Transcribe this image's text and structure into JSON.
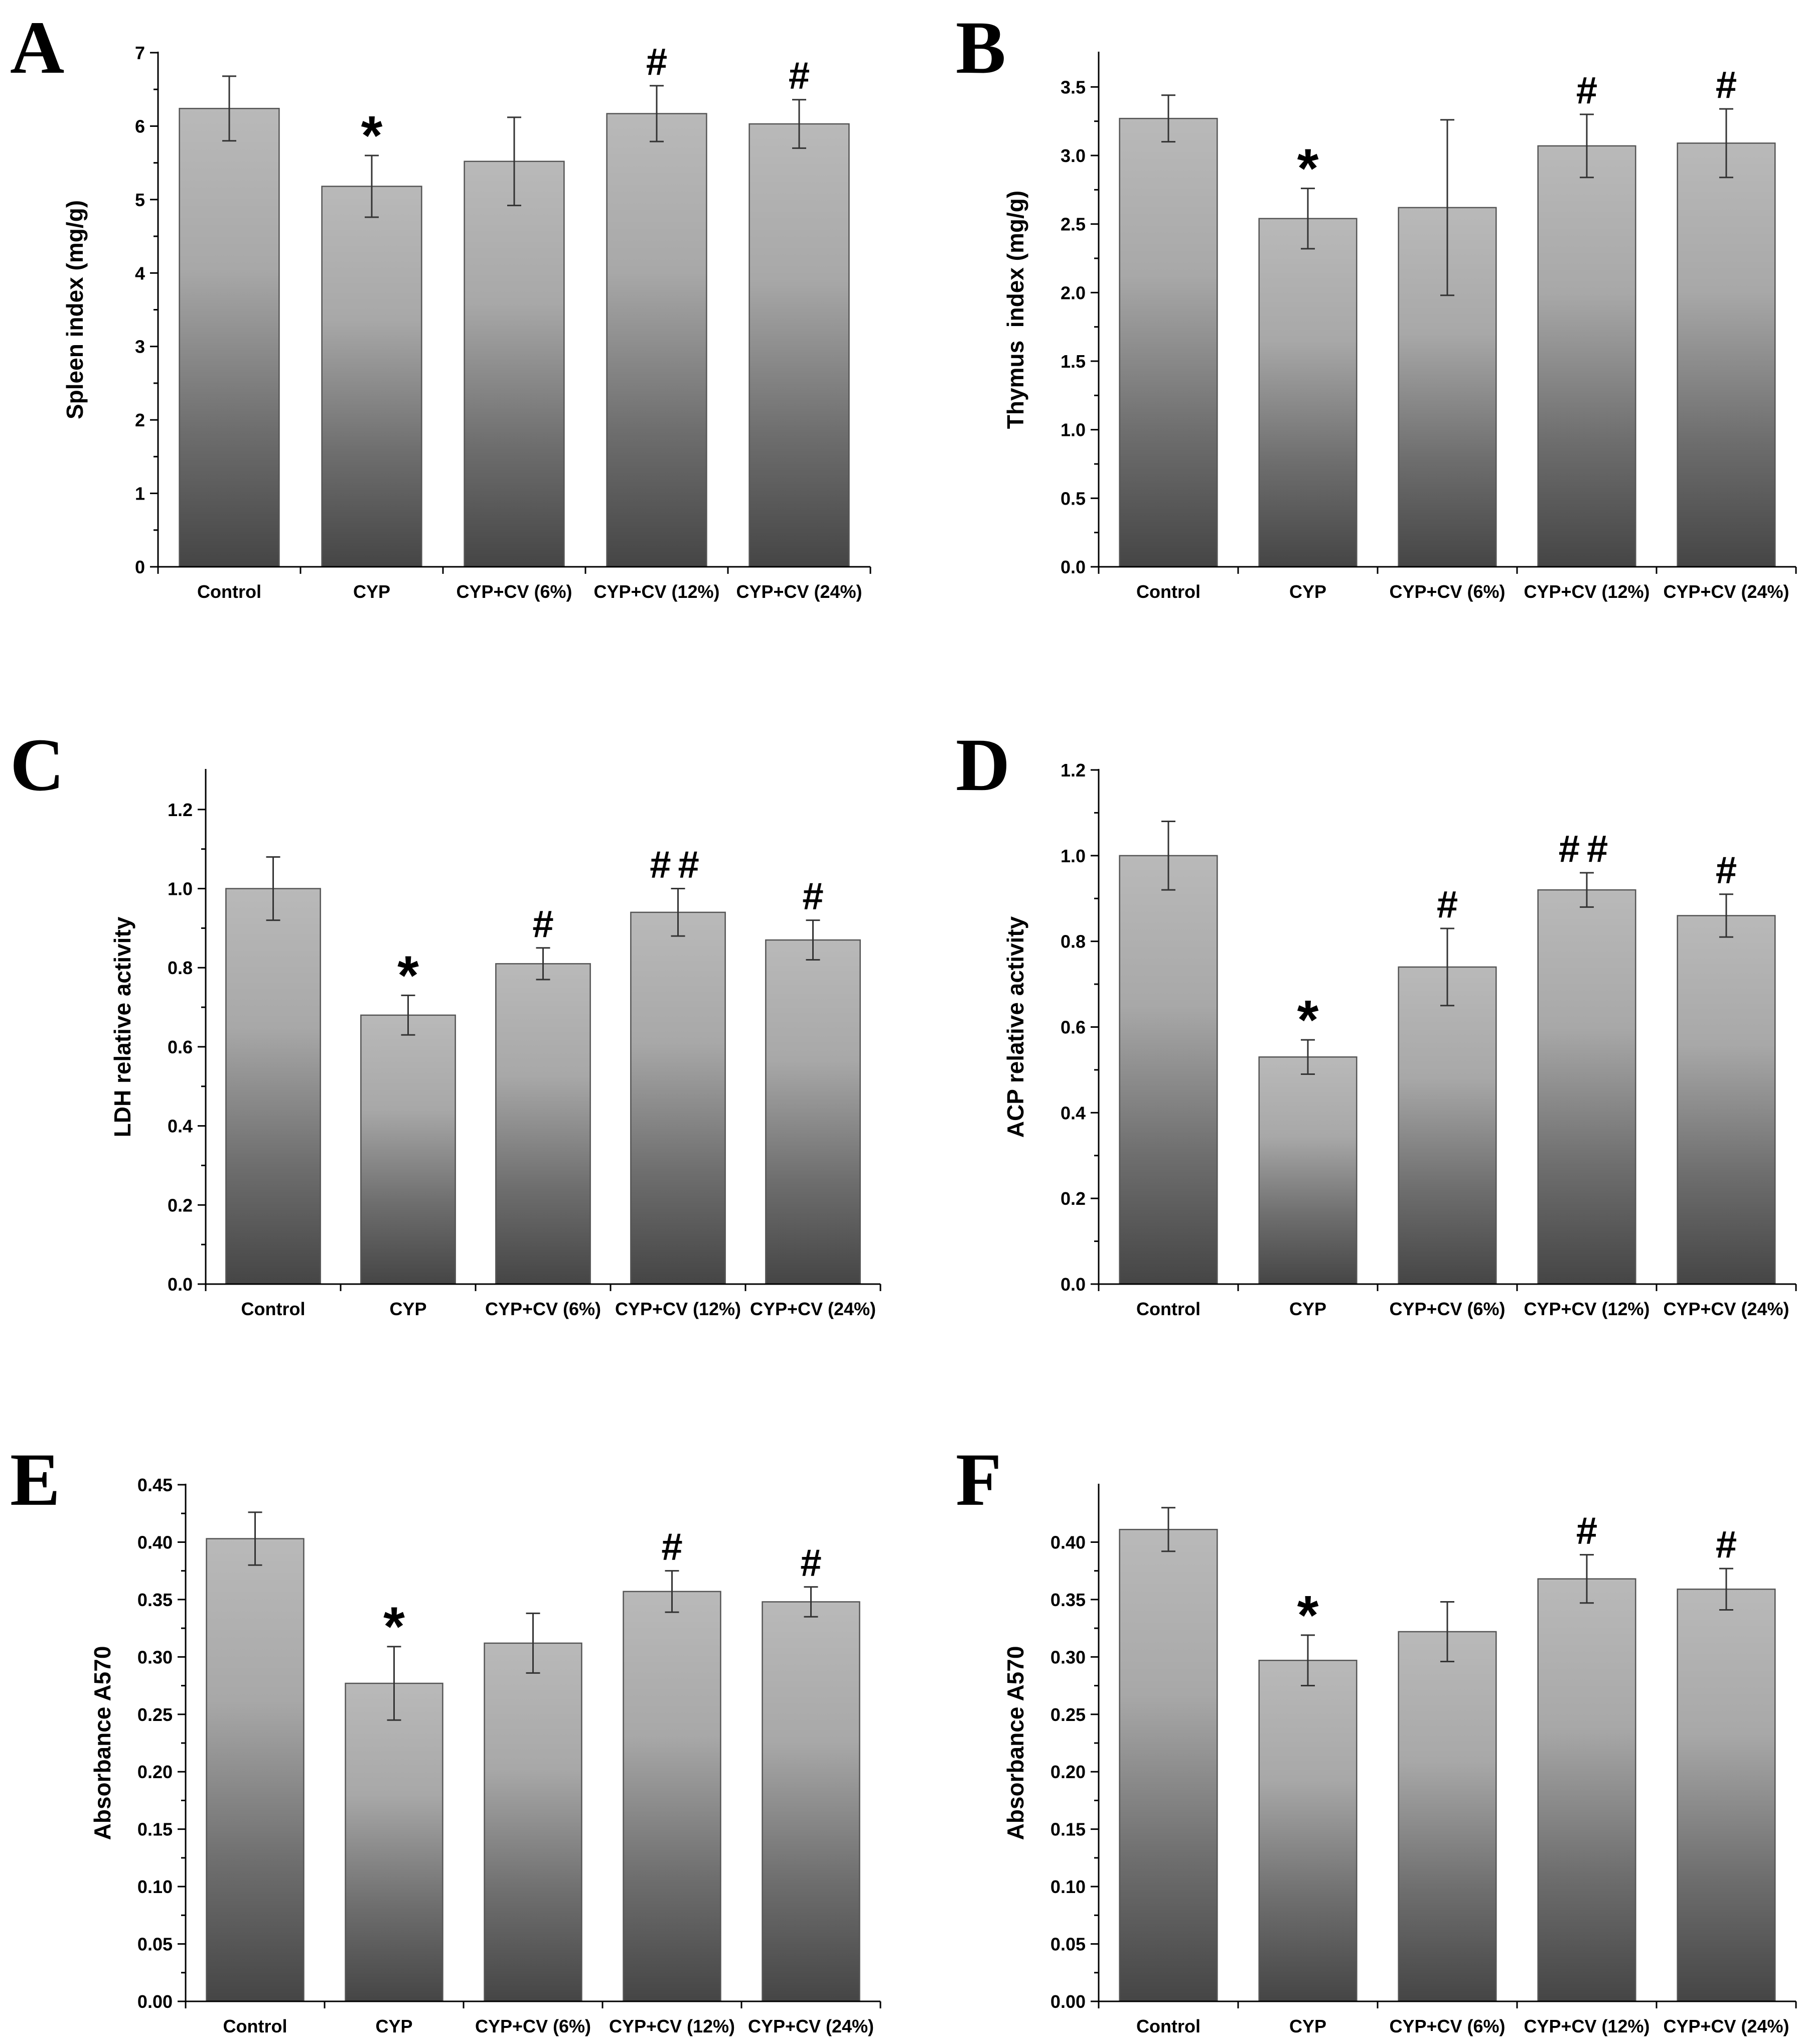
{
  "chart_data": [
    {
      "panel": "A",
      "type": "bar",
      "ylabel": "Spleen index (mg/g)",
      "categories": [
        "Control",
        "CYP",
        "CYP+CV (6%)",
        "CYP+CV (12%)",
        "CYP+CV (24%)"
      ],
      "values": [
        6.24,
        5.18,
        5.52,
        6.17,
        6.03
      ],
      "errors": [
        0.44,
        0.42,
        0.6,
        0.38,
        0.33
      ],
      "annotations": [
        "",
        "*",
        "",
        "#",
        "#"
      ],
      "ylim": [
        0,
        7
      ],
      "yticks": [
        "0",
        "1",
        "2",
        "3",
        "4",
        "5",
        "6",
        "7"
      ]
    },
    {
      "panel": "B",
      "type": "bar",
      "ylabel": "Thymus  index (mg/g)",
      "categories": [
        "Control",
        "CYP",
        "CYP+CV (6%)",
        "CYP+CV (12%)",
        "CYP+CV (24%)"
      ],
      "values": [
        3.27,
        2.54,
        2.62,
        3.07,
        3.09
      ],
      "errors": [
        0.17,
        0.22,
        0.64,
        0.23,
        0.25
      ],
      "annotations": [
        "",
        "*",
        "",
        "#",
        "#"
      ],
      "ylim": [
        0,
        3.75
      ],
      "yticks": [
        "0.0",
        "0.5",
        "1.0",
        "1.5",
        "2.0",
        "2.5",
        "3.0",
        "3.5"
      ]
    },
    {
      "panel": "C",
      "type": "bar",
      "ylabel": "LDH relative activity",
      "categories": [
        "Control",
        "CYP",
        "CYP+CV (6%)",
        "CYP+CV (12%)",
        "CYP+CV (24%)"
      ],
      "values": [
        1.0,
        0.68,
        0.81,
        0.94,
        0.87
      ],
      "errors": [
        0.08,
        0.05,
        0.04,
        0.06,
        0.05
      ],
      "annotations": [
        "",
        "*",
        "#",
        "##",
        "#"
      ],
      "ylim": [
        0,
        1.3
      ],
      "yticks": [
        "0.0",
        "0.2",
        "0.4",
        "0.6",
        "0.8",
        "1.0",
        "1.2"
      ]
    },
    {
      "panel": "D",
      "type": "bar",
      "ylabel": "ACP relative activity",
      "categories": [
        "Control",
        "CYP",
        "CYP+CV (6%)",
        "CYP+CV (12%)",
        "CYP+CV (24%)"
      ],
      "values": [
        1.0,
        0.53,
        0.74,
        0.92,
        0.86
      ],
      "errors": [
        0.08,
        0.04,
        0.09,
        0.04,
        0.05
      ],
      "annotations": [
        "",
        "*",
        "#",
        "##",
        "#"
      ],
      "ylim": [
        0,
        1.2
      ],
      "yticks": [
        "0.0",
        "0.2",
        "0.4",
        "0.6",
        "0.8",
        "1.0",
        "1.2"
      ]
    },
    {
      "panel": "E",
      "type": "bar",
      "ylabel": "Absorbance A570",
      "categories": [
        "Control",
        "CYP",
        "CYP+CV (6%)",
        "CYP+CV (12%)",
        "CYP+CV (24%)"
      ],
      "values": [
        0.403,
        0.277,
        0.312,
        0.357,
        0.348
      ],
      "errors": [
        0.023,
        0.032,
        0.026,
        0.018,
        0.013
      ],
      "annotations": [
        "",
        "*",
        "",
        "#",
        "#"
      ],
      "ylim": [
        0,
        0.45
      ],
      "yticks": [
        "0.00",
        "0.05",
        "0.10",
        "0.15",
        "0.20",
        "0.25",
        "0.30",
        "0.35",
        "0.40",
        "0.45"
      ]
    },
    {
      "panel": "F",
      "type": "bar",
      "ylabel": "Absorbance A570",
      "categories": [
        "Control",
        "CYP",
        "CYP+CV (6%)",
        "CYP+CV (12%)",
        "CYP+CV (24%)"
      ],
      "values": [
        0.411,
        0.297,
        0.322,
        0.368,
        0.359
      ],
      "errors": [
        0.019,
        0.022,
        0.026,
        0.021,
        0.018
      ],
      "annotations": [
        "",
        "*",
        "",
        "#",
        "#"
      ],
      "ylim": [
        0,
        0.45
      ],
      "yticks": [
        "0.00",
        "0.05",
        "0.10",
        "0.15",
        "0.20",
        "0.25",
        "0.30",
        "0.35",
        "0.40"
      ]
    }
  ]
}
